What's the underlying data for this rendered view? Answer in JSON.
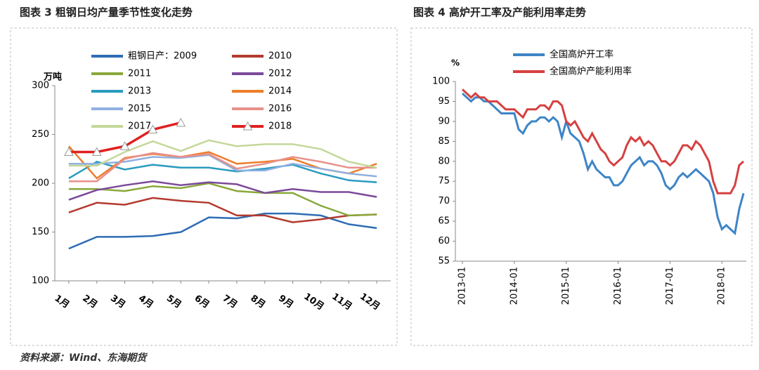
{
  "chart_data": [
    {
      "type": "line",
      "title": "图表 3 粗钢日均产量季节性变化走势",
      "y_label": "万吨",
      "categories": [
        "1月",
        "2月",
        "3月",
        "4月",
        "5月",
        "6月",
        "7月",
        "8月",
        "9月",
        "10月",
        "11月",
        "12月"
      ],
      "ylim": [
        100,
        300
      ],
      "yticks": [
        100,
        150,
        200,
        250,
        300
      ],
      "series": [
        {
          "name": "粗钢日产：2009",
          "color": "#2e6db4",
          "values": [
            133,
            145,
            145,
            146,
            150,
            165,
            164,
            169,
            169,
            167,
            158,
            154
          ]
        },
        {
          "name": "2010",
          "color": "#b33a2f",
          "values": [
            170,
            180,
            178,
            185,
            182,
            180,
            167,
            167,
            160,
            163,
            167,
            168
          ]
        },
        {
          "name": "2011",
          "color": "#8aa83a",
          "values": [
            194,
            194,
            192,
            197,
            195,
            200,
            192,
            190,
            190,
            177,
            167,
            168
          ]
        },
        {
          "name": "2012",
          "color": "#7b4a9a",
          "values": [
            183,
            193,
            198,
            202,
            198,
            201,
            199,
            190,
            194,
            191,
            191,
            186
          ]
        },
        {
          "name": "2013",
          "color": "#2b9bbf",
          "values": [
            205,
            222,
            214,
            219,
            216,
            216,
            212,
            215,
            219,
            210,
            203,
            201
          ]
        },
        {
          "name": "2014",
          "color": "#ee7d2a",
          "values": [
            238,
            205,
            226,
            230,
            227,
            232,
            220,
            222,
            225,
            215,
            210,
            220
          ]
        },
        {
          "name": "2015",
          "color": "#8fb0e0",
          "values": [
            220,
            220,
            222,
            227,
            226,
            229,
            213,
            213,
            220,
            215,
            210,
            207
          ]
        },
        {
          "name": "2016",
          "color": "#e8908a",
          "values": [
            202,
            202,
            225,
            231,
            227,
            230,
            215,
            220,
            227,
            222,
            216,
            216
          ]
        },
        {
          "name": "2017",
          "color": "#c4d89a",
          "values": [
            218,
            218,
            232,
            243,
            233,
            244,
            238,
            240,
            240,
            235,
            222,
            216
          ]
        },
        {
          "name": "2018",
          "color": "#e02020",
          "marker": "triangle",
          "values": [
            232,
            232,
            238,
            255,
            262,
            null,
            null,
            null,
            null,
            null,
            null,
            null
          ]
        }
      ]
    },
    {
      "type": "line",
      "title": "图表 4 高炉开工率及产能利用率走势",
      "y_label": "%",
      "x": [
        "2013-01",
        "2013-02",
        "2013-03",
        "2013-04",
        "2013-05",
        "2013-06",
        "2013-07",
        "2013-08",
        "2013-09",
        "2013-10",
        "2013-11",
        "2013-12",
        "2014-01",
        "2014-02",
        "2014-03",
        "2014-04",
        "2014-05",
        "2014-06",
        "2014-07",
        "2014-08",
        "2014-09",
        "2014-10",
        "2014-11",
        "2014-12",
        "2015-01",
        "2015-02",
        "2015-03",
        "2015-04",
        "2015-05",
        "2015-06",
        "2015-07",
        "2015-08",
        "2015-09",
        "2015-10",
        "2015-11",
        "2015-12",
        "2016-01",
        "2016-02",
        "2016-03",
        "2016-04",
        "2016-05",
        "2016-06",
        "2016-07",
        "2016-08",
        "2016-09",
        "2016-10",
        "2016-11",
        "2016-12",
        "2017-01",
        "2017-02",
        "2017-03",
        "2017-04",
        "2017-05",
        "2017-06",
        "2017-07",
        "2017-08",
        "2017-09",
        "2017-10",
        "2017-11",
        "2017-12",
        "2018-01",
        "2018-02",
        "2018-03",
        "2018-04",
        "2018-05",
        "2018-06"
      ],
      "xticks": [
        "2013-01",
        "2014-01",
        "2015-01",
        "2016-01",
        "2017-01",
        "2018-01"
      ],
      "ylim": [
        55,
        100
      ],
      "yticks": [
        55,
        60,
        65,
        70,
        75,
        80,
        85,
        90,
        95,
        100
      ],
      "series": [
        {
          "name": "全国高炉开工率",
          "color": "#3d85c6",
          "values": [
            97,
            96,
            95,
            96,
            96,
            95,
            95,
            94,
            93,
            92,
            92,
            92,
            92,
            88,
            87,
            89,
            90,
            90,
            91,
            91,
            90,
            91,
            90,
            86,
            90,
            87,
            86,
            85,
            82,
            78,
            80,
            78,
            77,
            76,
            76,
            74,
            74,
            75,
            77,
            79,
            80,
            81,
            79,
            80,
            80,
            79,
            77,
            74,
            73,
            74,
            76,
            77,
            76,
            77,
            78,
            77,
            76,
            75,
            72,
            66,
            63,
            64,
            63,
            62,
            68,
            72
          ]
        },
        {
          "name": "全国高炉产能利用率",
          "color": "#d64040",
          "values": [
            98,
            97,
            96,
            97,
            96,
            96,
            95,
            95,
            95,
            94,
            93,
            93,
            93,
            92,
            91,
            93,
            93,
            93,
            94,
            94,
            93,
            95,
            95,
            94,
            90,
            89,
            90,
            88,
            86,
            85,
            87,
            85,
            83,
            82,
            80,
            79,
            80,
            81,
            84,
            86,
            85,
            86,
            84,
            85,
            84,
            82,
            80,
            80,
            79,
            80,
            82,
            84,
            84,
            83,
            85,
            84,
            82,
            80,
            75,
            72,
            72,
            72,
            72,
            74,
            79,
            80
          ]
        }
      ]
    }
  ],
  "source": "资料来源：Wind、东海期货"
}
